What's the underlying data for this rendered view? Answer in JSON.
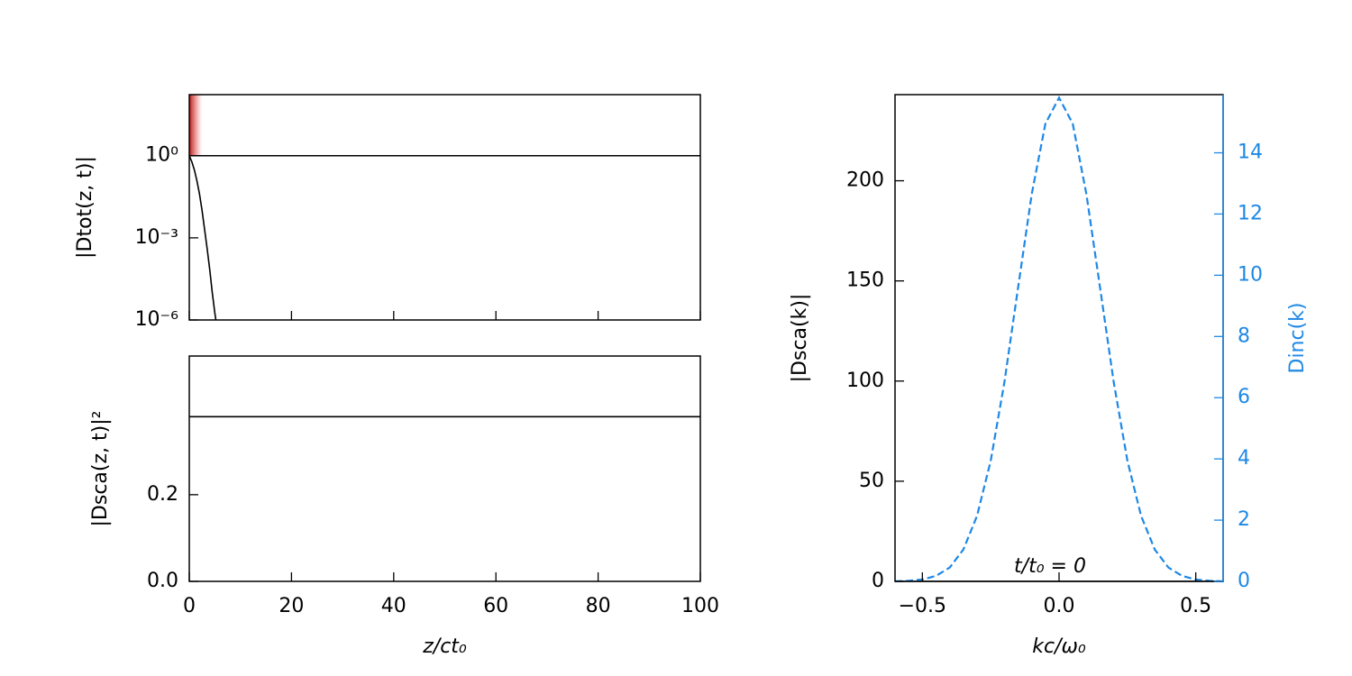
{
  "chart_data": [
    {
      "type": "line",
      "yscale": "log",
      "show_xticklabels": false,
      "ylabel": "|Dtot(z, t)|",
      "xlim": [
        0,
        100
      ],
      "xticks": [
        0,
        20,
        40,
        60,
        80,
        100
      ],
      "ylim": [
        1e-06,
        170
      ],
      "yticks": [
        {
          "value": 1,
          "label": "10⁰"
        },
        {
          "value": 0.001,
          "label": "10⁻³"
        },
        {
          "value": 1e-06,
          "label": "10⁻⁶"
        }
      ],
      "series": [
        {
          "color": "#000000",
          "x": [
            0,
            100
          ],
          "values": [
            1,
            1
          ]
        },
        {
          "color": "#000000",
          "x": [
            0,
            0.5,
            1,
            1.5,
            2,
            2.5,
            3,
            3.5,
            4,
            4.5,
            5,
            5.2
          ],
          "values": [
            1,
            0.6,
            0.3,
            0.12,
            0.04,
            0.01,
            0.002,
            0.0004,
            7e-05,
            1e-05,
            1.8e-06,
            1e-06
          ]
        }
      ]
    },
    {
      "type": "line",
      "show_xticklabels": true,
      "ylabel": "|Dsca(z, t)|²",
      "xlabel": "z/ct₀",
      "xlim": [
        0,
        100
      ],
      "xticks": [
        0,
        20,
        40,
        60,
        80,
        100
      ],
      "ylim": [
        0,
        0.52
      ],
      "yticks": [
        {
          "value": 0,
          "label": "0.0"
        },
        0.2
      ],
      "series": [
        {
          "color": "#000000",
          "x": [
            0,
            100
          ],
          "values": [
            0.38,
            0.38
          ]
        }
      ]
    },
    {
      "type": "line",
      "show_xticklabels": true,
      "ylabel": "|Dsca(k)|",
      "y2label": "Dinc(k)",
      "xlabel": "kc/ω₀",
      "annotation": "t/t₀ = 0",
      "xlim": [
        -0.6,
        0.6
      ],
      "xticks": [
        {
          "value": -0.5,
          "label": "−0.5"
        },
        {
          "value": 0,
          "label": "0.0"
        },
        0.5
      ],
      "ylim": [
        0,
        243
      ],
      "yticks": [
        0,
        50,
        100,
        150,
        200
      ],
      "y2lim": [
        0,
        15.9
      ],
      "y2ticks": [
        0,
        2,
        4,
        6,
        8,
        10,
        12,
        14
      ],
      "y2color": "#1e88e5",
      "series": [
        {
          "color": "#000000",
          "x": [
            -0.6,
            0.6
          ],
          "values": [
            0,
            0
          ]
        },
        {
          "color": "#1e88e5",
          "axis": "y2",
          "linestyle": "dashed",
          "x": [
            -0.6,
            -0.55,
            -0.5,
            -0.45,
            -0.4,
            -0.35,
            -0.3,
            -0.25,
            -0.2,
            -0.15,
            -0.1,
            -0.05,
            0,
            0.05,
            0.1,
            0.15,
            0.2,
            0.25,
            0.3,
            0.35,
            0.4,
            0.45,
            0.5,
            0.55,
            0.6
          ],
          "values": [
            0,
            0.02,
            0.06,
            0.18,
            0.45,
            1.04,
            2.14,
            3.94,
            6.5,
            9.59,
            12.65,
            14.95,
            15.8,
            14.95,
            12.65,
            9.59,
            6.5,
            3.94,
            2.14,
            1.04,
            0.45,
            0.18,
            0.06,
            0.02,
            0
          ]
        }
      ]
    }
  ]
}
